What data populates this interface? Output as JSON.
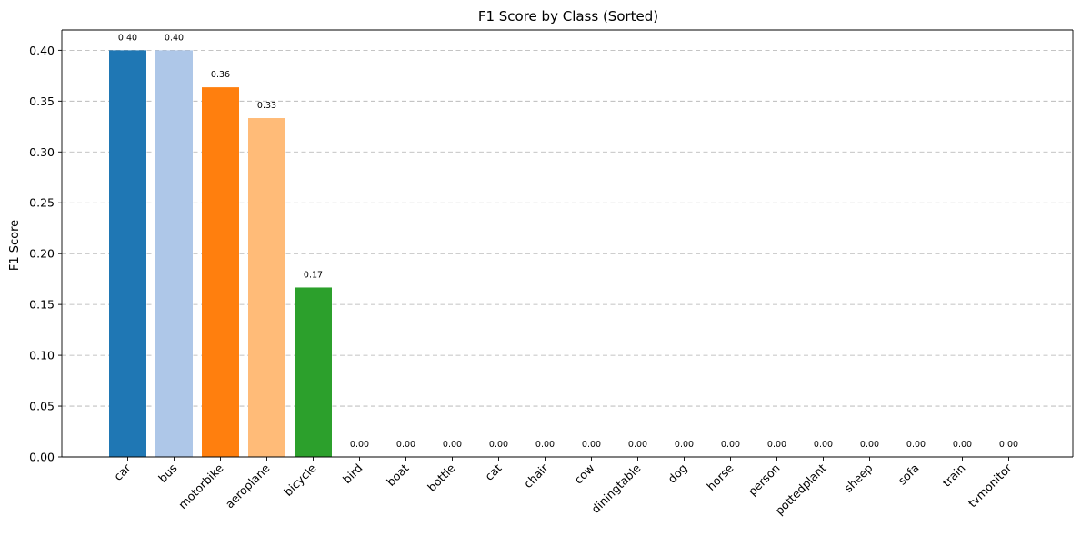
{
  "chart_data": {
    "type": "bar",
    "title": "F1 Score by Class (Sorted)",
    "xlabel": "",
    "ylabel": "F1 Score",
    "ylim": [
      0,
      0.42
    ],
    "yticks": [
      "0.00",
      "0.05",
      "0.10",
      "0.15",
      "0.20",
      "0.25",
      "0.30",
      "0.35",
      "0.40"
    ],
    "grid": "y-dashed",
    "categories": [
      "car",
      "bus",
      "motorbike",
      "aeroplane",
      "bicycle",
      "bird",
      "boat",
      "bottle",
      "cat",
      "chair",
      "cow",
      "diningtable",
      "dog",
      "horse",
      "person",
      "pottedplant",
      "sheep",
      "sofa",
      "train",
      "tvmonitor"
    ],
    "values": [
      0.4,
      0.4,
      0.3636,
      0.3333,
      0.1667,
      0,
      0,
      0,
      0,
      0,
      0,
      0,
      0,
      0,
      0,
      0,
      0,
      0,
      0,
      0
    ],
    "value_labels": [
      "0.40",
      "0.40",
      "0.36",
      "0.33",
      "0.17",
      "0.00",
      "0.00",
      "0.00",
      "0.00",
      "0.00",
      "0.00",
      "0.00",
      "0.00",
      "0.00",
      "0.00",
      "0.00",
      "0.00",
      "0.00",
      "0.00",
      "0.00"
    ],
    "colors": [
      "#1f77b4",
      "#aec7e8",
      "#ff7f0e",
      "#ffbb78",
      "#2ca02c",
      "#98df8a",
      "#d62728",
      "#ff9896",
      "#9467bd",
      "#c5b0d5",
      "#8c564b",
      "#c49c94",
      "#e377c2",
      "#f7b6d2",
      "#7f7f7f",
      "#c7c7c7",
      "#bcbd22",
      "#dbdb8d",
      "#17becf",
      "#9edae5"
    ]
  }
}
